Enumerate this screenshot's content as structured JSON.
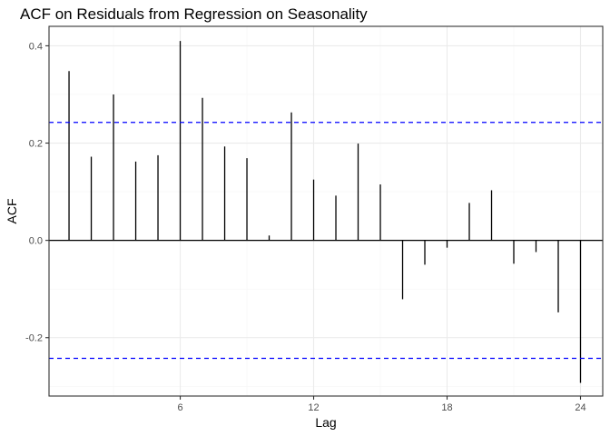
{
  "chart_data": {
    "type": "bar",
    "title": "ACF on Residuals from Regression on Seasonality",
    "xlabel": "Lag",
    "ylabel": "ACF",
    "x": [
      1,
      2,
      3,
      4,
      5,
      6,
      7,
      8,
      9,
      10,
      11,
      12,
      13,
      14,
      15,
      16,
      17,
      18,
      19,
      20,
      21,
      22,
      23,
      24
    ],
    "values": [
      0.348,
      0.172,
      0.3,
      0.162,
      0.175,
      0.41,
      0.293,
      0.193,
      0.169,
      0.01,
      0.263,
      0.125,
      0.092,
      0.199,
      0.115,
      -0.121,
      -0.05,
      -0.015,
      0.077,
      0.103,
      -0.048,
      -0.024,
      -0.148,
      -0.293
    ],
    "confidence_bound": 0.2425,
    "xlim": [
      0.1,
      25.0
    ],
    "ylim": [
      -0.32,
      0.44
    ],
    "x_ticks": [
      6,
      12,
      18,
      24
    ],
    "y_ticks": [
      -0.2,
      0.0,
      0.2,
      0.4
    ],
    "y_tick_labels": [
      "-0.2",
      "0.0",
      "0.2",
      "0.4"
    ],
    "grid": true,
    "legend": "none",
    "colors": {
      "bars": "#000000",
      "confidence_lines": "#0000ff",
      "grid_major": "#ebebeb",
      "grid_minor": "#f5f5f5",
      "panel_border": "#333333"
    }
  }
}
